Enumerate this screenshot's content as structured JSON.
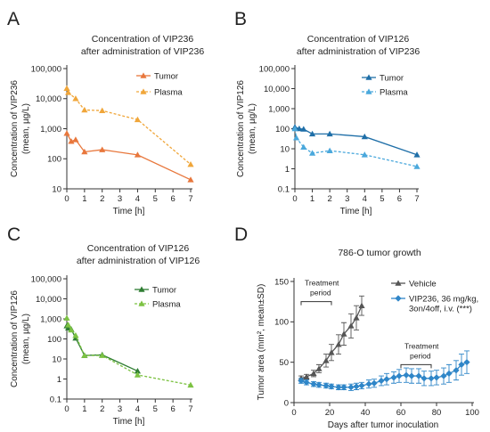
{
  "chart_data": [
    {
      "panel": "A",
      "type": "line",
      "title": [
        "Concentration of VIP236",
        "after administration of VIP236"
      ],
      "xlabel": "Time [h]",
      "ylabel": [
        "Concentration of VIP236",
        "(mean, µg/L)"
      ],
      "yscale": "log",
      "xlim": [
        0,
        7
      ],
      "ylim": [
        10,
        100000
      ],
      "x_ticks": [
        0,
        1,
        2,
        3,
        4,
        5,
        6,
        7
      ],
      "y_ticks": [
        10,
        100,
        1000,
        10000,
        100000
      ],
      "y_tick_labels": [
        "10",
        "100",
        "1,000",
        "10,000",
        "100,000"
      ],
      "legend_position": "top-right",
      "series": [
        {
          "name": "Tumor",
          "color": "#e8773c",
          "marker": "triangle",
          "dashed": false,
          "x": [
            0,
            0.25,
            0.5,
            1,
            2,
            4,
            7
          ],
          "y": [
            700,
            380,
            430,
            170,
            200,
            135,
            20
          ]
        },
        {
          "name": "Plasma",
          "color": "#f0a63a",
          "marker": "triangle",
          "dashed": true,
          "x": [
            0,
            0.083,
            0.5,
            1,
            2,
            4,
            7
          ],
          "y": [
            22000,
            16000,
            10000,
            4200,
            4000,
            2000,
            65
          ]
        }
      ]
    },
    {
      "panel": "B",
      "type": "line",
      "title": [
        "Concentration of VIP126",
        "after administration of VIP236"
      ],
      "xlabel": "Time [h]",
      "ylabel": [
        "Concentration of VIP126",
        "(mean, µg/L)"
      ],
      "yscale": "log",
      "xlim": [
        0,
        7
      ],
      "ylim": [
        0.1,
        100000
      ],
      "x_ticks": [
        0,
        1,
        2,
        3,
        4,
        5,
        6,
        7
      ],
      "y_ticks": [
        0.1,
        1,
        10,
        100,
        1000,
        10000,
        100000
      ],
      "y_tick_labels": [
        "0.1",
        "1",
        "10",
        "100",
        "1,000",
        "10,000",
        "100,000"
      ],
      "legend_position": "top-right",
      "series": [
        {
          "name": "Tumor",
          "color": "#1f6fa8",
          "marker": "triangle",
          "dashed": false,
          "x": [
            0,
            0.25,
            0.5,
            1,
            2,
            4,
            7
          ],
          "y": [
            120,
            100,
            95,
            55,
            55,
            40,
            5
          ]
        },
        {
          "name": "Plasma",
          "color": "#4aa8dc",
          "marker": "triangle",
          "dashed": true,
          "x": [
            0,
            0.083,
            0.5,
            1,
            2,
            4,
            7
          ],
          "y": [
            100,
            35,
            12,
            6,
            8,
            5,
            1.3
          ]
        }
      ]
    },
    {
      "panel": "C",
      "type": "line",
      "title": [
        "Concentration of VIP126",
        "after administration of VIP126"
      ],
      "xlabel": "Time [h]",
      "ylabel": [
        "Concentration of VIP126",
        "(mean, µg/L)"
      ],
      "yscale": "log",
      "xlim": [
        0,
        7
      ],
      "ylim": [
        0.1,
        100000
      ],
      "x_ticks": [
        0,
        1,
        2,
        3,
        4,
        5,
        6,
        7
      ],
      "y_ticks": [
        0.1,
        1,
        10,
        100,
        1000,
        10000,
        100000
      ],
      "y_tick_labels": [
        "0.1",
        "1",
        "10",
        "100",
        "1,000",
        "10,000",
        "100,000"
      ],
      "legend_position": "top-right",
      "series": [
        {
          "name": "Tumor",
          "color": "#2e7d32",
          "marker": "triangle",
          "dashed": false,
          "x": [
            0,
            0.083,
            0.25,
            0.5,
            1,
            2,
            4
          ],
          "y": [
            450,
            350,
            300,
            110,
            15,
            16,
            2.5
          ]
        },
        {
          "name": "Plasma",
          "color": "#7cc242",
          "marker": "triangle",
          "dashed": true,
          "x": [
            0,
            0.083,
            0.25,
            0.5,
            1,
            2,
            4,
            7
          ],
          "y": [
            1100,
            500,
            280,
            150,
            15,
            15,
            1.6,
            0.5
          ]
        }
      ]
    },
    {
      "panel": "D",
      "type": "line",
      "title": [
        "786-O tumor growth"
      ],
      "xlabel": "Days after tumor inoculation",
      "ylabel": [
        "Tumor area (mm², mean±SD)"
      ],
      "yscale": "linear",
      "xlim": [
        0,
        100
      ],
      "ylim": [
        0,
        150
      ],
      "x_ticks": [
        0,
        20,
        40,
        60,
        80,
        100
      ],
      "y_ticks": [
        0,
        50,
        100,
        150
      ],
      "y_tick_labels": [
        "0",
        "50",
        "100",
        "150"
      ],
      "legend_position": "top-right",
      "annotations": [
        {
          "text": [
            "Treatment",
            "period"
          ],
          "x_start": 4,
          "x_end": 21,
          "y": 125
        },
        {
          "text": [
            "Treatment",
            "period"
          ],
          "x_start": 60,
          "x_end": 77,
          "y": 47
        }
      ],
      "series": [
        {
          "name": "Vehicle",
          "color": "#555555",
          "marker": "triangle",
          "dashed": false,
          "x": [
            4,
            7,
            11,
            14,
            18,
            21,
            25,
            28,
            32,
            35,
            38
          ],
          "y": [
            30,
            32,
            36,
            42,
            52,
            62,
            72,
            85,
            95,
            105,
            120
          ],
          "err": [
            3,
            3,
            4,
            5,
            8,
            10,
            12,
            14,
            15,
            15,
            12
          ]
        },
        {
          "name": [
            "VIP236, 36 mg/kg,",
            "3on/4off, i.v. (***)"
          ],
          "color": "#2f86c8",
          "marker": "diamond",
          "dashed": false,
          "x": [
            4,
            7,
            11,
            14,
            18,
            21,
            25,
            28,
            32,
            35,
            38,
            42,
            45,
            49,
            52,
            56,
            59,
            63,
            66,
            70,
            73,
            77,
            80,
            84,
            87,
            91,
            94,
            97
          ],
          "y": [
            27,
            25,
            23,
            22,
            21,
            20,
            19,
            19,
            19,
            20,
            21,
            23,
            24,
            27,
            29,
            31,
            33,
            34,
            33,
            33,
            30,
            30,
            31,
            33,
            36,
            40,
            47,
            50
          ],
          "err": [
            3,
            3,
            3,
            3,
            3,
            3,
            3,
            3,
            4,
            4,
            4,
            5,
            5,
            6,
            7,
            7,
            8,
            9,
            9,
            9,
            9,
            9,
            9,
            10,
            11,
            12,
            13,
            14
          ]
        }
      ]
    }
  ]
}
